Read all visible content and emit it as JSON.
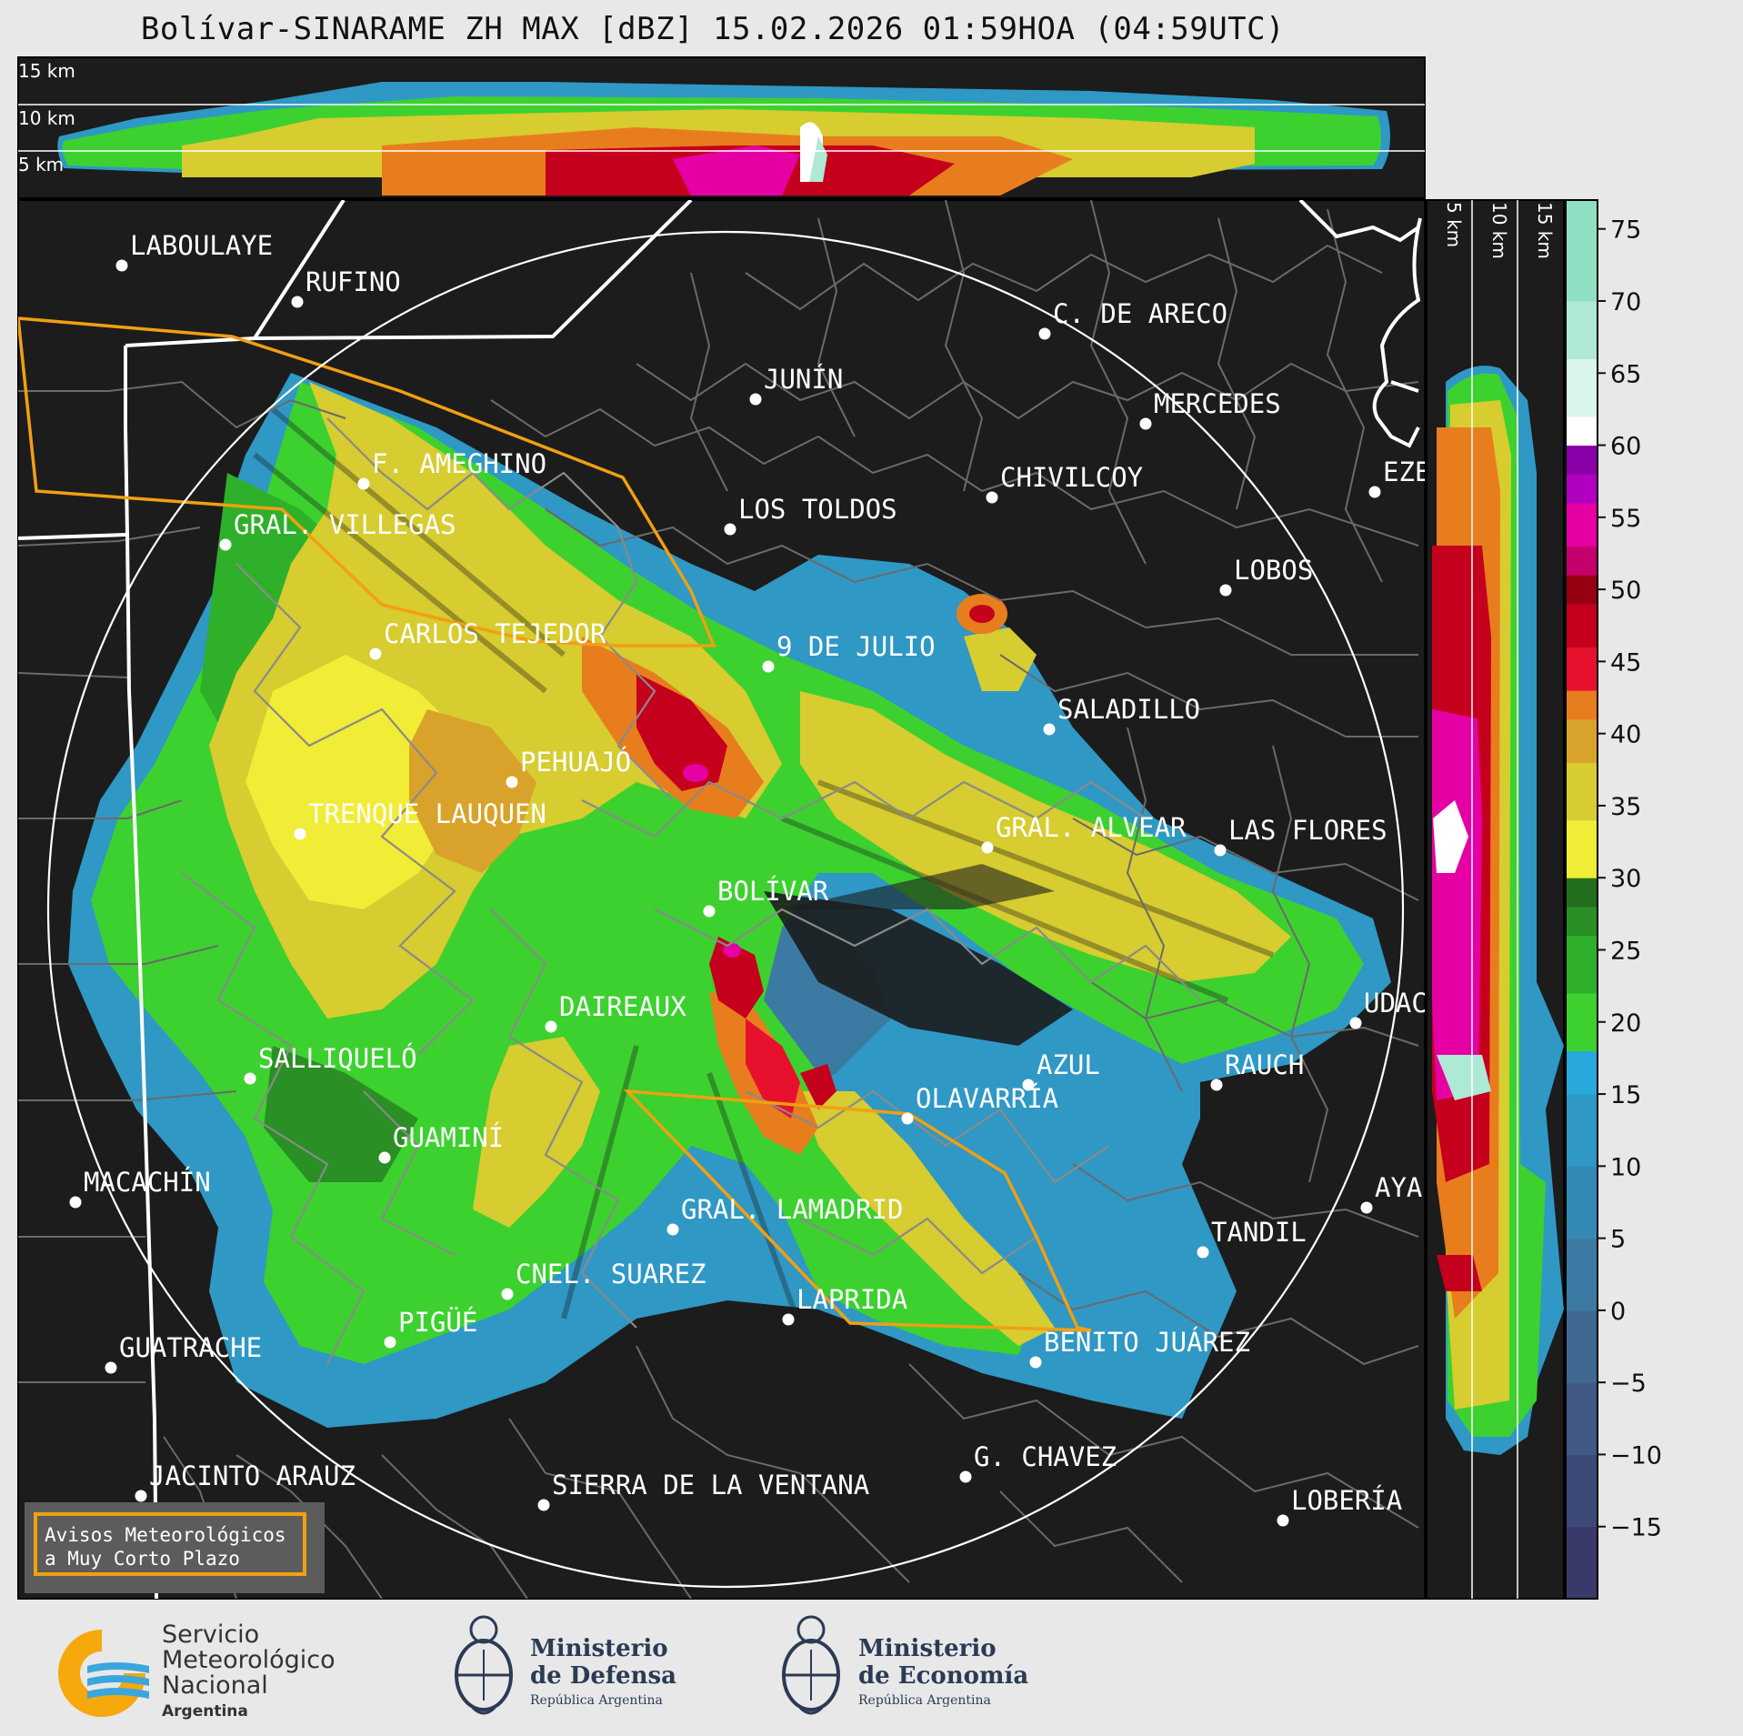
{
  "title": "Bolívar-SINARAME ZH MAX [dBZ] 15.02.2026 01:59HOA (04:59UTC)",
  "top_panel": {
    "km_labels": [
      "15 km",
      "10 km",
      "5 km"
    ]
  },
  "side_panel": {
    "km_labels": [
      "5 km",
      "10 km",
      "15 km"
    ]
  },
  "colorbar": {
    "ticks": [
      "75",
      "70",
      "65",
      "60",
      "55",
      "50",
      "45",
      "40",
      "35",
      "30",
      "25",
      "20",
      "15",
      "10",
      "5",
      "0",
      "−5",
      "−10",
      "−15"
    ],
    "tick_values": [
      75,
      70,
      65,
      60,
      55,
      50,
      45,
      40,
      35,
      30,
      25,
      20,
      15,
      10,
      5,
      0,
      -5,
      -10,
      -15
    ],
    "min": -20,
    "max": 77,
    "stops": [
      {
        "from": -20,
        "color": "#3a3a6a"
      },
      {
        "from": -15,
        "color": "#3d4a78"
      },
      {
        "from": -10,
        "color": "#405a85"
      },
      {
        "from": -5,
        "color": "#3f6990"
      },
      {
        "from": 0,
        "color": "#3b7aa3"
      },
      {
        "from": 5,
        "color": "#3589b5"
      },
      {
        "from": 10,
        "color": "#2f98c5"
      },
      {
        "from": 15,
        "color": "#28a9dc"
      },
      {
        "from": 18,
        "color": "#3cd12f"
      },
      {
        "from": 22,
        "color": "#2fb02a"
      },
      {
        "from": 26,
        "color": "#2a8f24"
      },
      {
        "from": 28,
        "color": "#246f1e"
      },
      {
        "from": 30,
        "color": "#f1ec35"
      },
      {
        "from": 34,
        "color": "#d7cc30"
      },
      {
        "from": 38,
        "color": "#d9a22a"
      },
      {
        "from": 41,
        "color": "#e87d1e"
      },
      {
        "from": 43,
        "color": "#e8112d"
      },
      {
        "from": 46,
        "color": "#c4001c"
      },
      {
        "from": 49,
        "color": "#960012"
      },
      {
        "from": 51,
        "color": "#c4006d"
      },
      {
        "from": 53,
        "color": "#e600a4"
      },
      {
        "from": 56,
        "color": "#b200c0"
      },
      {
        "from": 58,
        "color": "#8a00a8"
      },
      {
        "from": 60,
        "color": "#ffffff"
      },
      {
        "from": 62,
        "color": "#d9f5ea"
      },
      {
        "from": 66,
        "color": "#aee9d5"
      },
      {
        "from": 70,
        "color": "#8fdfc2"
      }
    ]
  },
  "cities": [
    {
      "name": "LABOULAYE"
    },
    {
      "name": "RUFINO"
    },
    {
      "name": "C. DE ARECO"
    },
    {
      "name": "JUNÍN"
    },
    {
      "name": "MERCEDES"
    },
    {
      "name": "F. AMEGHINO"
    },
    {
      "name": "CHIVILCOY"
    },
    {
      "name": "EZE"
    },
    {
      "name": "GRAL. VILLEGAS"
    },
    {
      "name": "LOS TOLDOS"
    },
    {
      "name": "LOBOS"
    },
    {
      "name": "CARLOS TEJEDOR"
    },
    {
      "name": "9 DE JULIO"
    },
    {
      "name": "SALADILLO"
    },
    {
      "name": "PEHUAJÓ"
    },
    {
      "name": "TRENQUE LAUQUEN"
    },
    {
      "name": "GRAL. ALVEAR"
    },
    {
      "name": "LAS FLORES"
    },
    {
      "name": "BOLÍVAR"
    },
    {
      "name": "DAIREAUX"
    },
    {
      "name": "UDAC"
    },
    {
      "name": "SALLIQUELÓ"
    },
    {
      "name": "AZUL"
    },
    {
      "name": "RAUCH"
    },
    {
      "name": "OLAVARRÍA"
    },
    {
      "name": "GUAMINÍ"
    },
    {
      "name": "MACACHÍN"
    },
    {
      "name": "AYA"
    },
    {
      "name": "GRAL. LAMADRID"
    },
    {
      "name": "TANDIL"
    },
    {
      "name": "CNEL. SUAREZ"
    },
    {
      "name": "LAPRIDA"
    },
    {
      "name": "PIGÜÉ"
    },
    {
      "name": "GUATRACHE"
    },
    {
      "name": "BENITO JUÁREZ"
    },
    {
      "name": "G. CHAVEZ"
    },
    {
      "name": "JACINTO ARAUZ"
    },
    {
      "name": "SIERRA DE LA VENTANA"
    },
    {
      "name": "LOBERÍA"
    }
  ],
  "warning_box": {
    "line1": "Avisos Meteorológicos",
    "line2": "a Muy Corto Plazo"
  },
  "logos": {
    "smn": {
      "line1": "Servicio",
      "line2": "Meteorológico",
      "line3": "Nacional",
      "line4": "Argentina"
    },
    "defensa": {
      "line1": "Ministerio",
      "line2": "de Defensa",
      "line3": "República Argentina"
    },
    "economia": {
      "line1": "Ministerio",
      "line2": "de Economía",
      "line3": "República Argentina"
    }
  }
}
